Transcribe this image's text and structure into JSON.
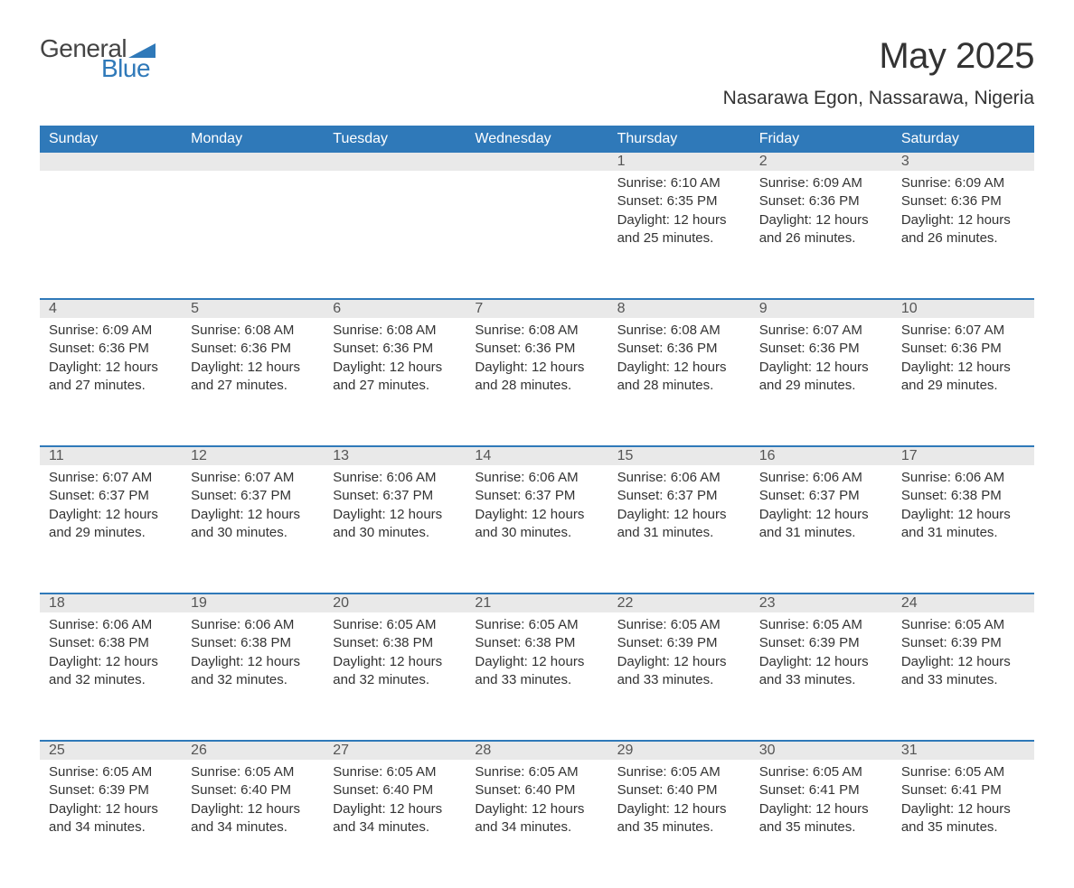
{
  "logo": {
    "word1": "General",
    "word2": "Blue",
    "tri_color": "#2f79b9"
  },
  "title": "May 2025",
  "subtitle": "Nasarawa Egon, Nassarawa, Nigeria",
  "colors": {
    "header_bg": "#2f79b9",
    "header_text": "#ffffff",
    "daynum_bg": "#e9e9e9",
    "daynum_text": "#555555",
    "body_text": "#333333",
    "rule": "#2f79b9",
    "page_bg": "#ffffff"
  },
  "typography": {
    "title_fontsize": 40,
    "subtitle_fontsize": 21,
    "weekday_fontsize": 16,
    "daynum_fontsize": 16,
    "body_fontsize": 15,
    "font_family": "Segoe UI"
  },
  "layout": {
    "columns": 7,
    "rows": 5,
    "leading_blanks": 4
  },
  "weekdays": [
    "Sunday",
    "Monday",
    "Tuesday",
    "Wednesday",
    "Thursday",
    "Friday",
    "Saturday"
  ],
  "weeks": [
    [
      null,
      null,
      null,
      null,
      {
        "n": "1",
        "sr": "Sunrise: 6:10 AM",
        "ss": "Sunset: 6:35 PM",
        "d1": "Daylight: 12 hours",
        "d2": "and 25 minutes."
      },
      {
        "n": "2",
        "sr": "Sunrise: 6:09 AM",
        "ss": "Sunset: 6:36 PM",
        "d1": "Daylight: 12 hours",
        "d2": "and 26 minutes."
      },
      {
        "n": "3",
        "sr": "Sunrise: 6:09 AM",
        "ss": "Sunset: 6:36 PM",
        "d1": "Daylight: 12 hours",
        "d2": "and 26 minutes."
      }
    ],
    [
      {
        "n": "4",
        "sr": "Sunrise: 6:09 AM",
        "ss": "Sunset: 6:36 PM",
        "d1": "Daylight: 12 hours",
        "d2": "and 27 minutes."
      },
      {
        "n": "5",
        "sr": "Sunrise: 6:08 AM",
        "ss": "Sunset: 6:36 PM",
        "d1": "Daylight: 12 hours",
        "d2": "and 27 minutes."
      },
      {
        "n": "6",
        "sr": "Sunrise: 6:08 AM",
        "ss": "Sunset: 6:36 PM",
        "d1": "Daylight: 12 hours",
        "d2": "and 27 minutes."
      },
      {
        "n": "7",
        "sr": "Sunrise: 6:08 AM",
        "ss": "Sunset: 6:36 PM",
        "d1": "Daylight: 12 hours",
        "d2": "and 28 minutes."
      },
      {
        "n": "8",
        "sr": "Sunrise: 6:08 AM",
        "ss": "Sunset: 6:36 PM",
        "d1": "Daylight: 12 hours",
        "d2": "and 28 minutes."
      },
      {
        "n": "9",
        "sr": "Sunrise: 6:07 AM",
        "ss": "Sunset: 6:36 PM",
        "d1": "Daylight: 12 hours",
        "d2": "and 29 minutes."
      },
      {
        "n": "10",
        "sr": "Sunrise: 6:07 AM",
        "ss": "Sunset: 6:36 PM",
        "d1": "Daylight: 12 hours",
        "d2": "and 29 minutes."
      }
    ],
    [
      {
        "n": "11",
        "sr": "Sunrise: 6:07 AM",
        "ss": "Sunset: 6:37 PM",
        "d1": "Daylight: 12 hours",
        "d2": "and 29 minutes."
      },
      {
        "n": "12",
        "sr": "Sunrise: 6:07 AM",
        "ss": "Sunset: 6:37 PM",
        "d1": "Daylight: 12 hours",
        "d2": "and 30 minutes."
      },
      {
        "n": "13",
        "sr": "Sunrise: 6:06 AM",
        "ss": "Sunset: 6:37 PM",
        "d1": "Daylight: 12 hours",
        "d2": "and 30 minutes."
      },
      {
        "n": "14",
        "sr": "Sunrise: 6:06 AM",
        "ss": "Sunset: 6:37 PM",
        "d1": "Daylight: 12 hours",
        "d2": "and 30 minutes."
      },
      {
        "n": "15",
        "sr": "Sunrise: 6:06 AM",
        "ss": "Sunset: 6:37 PM",
        "d1": "Daylight: 12 hours",
        "d2": "and 31 minutes."
      },
      {
        "n": "16",
        "sr": "Sunrise: 6:06 AM",
        "ss": "Sunset: 6:37 PM",
        "d1": "Daylight: 12 hours",
        "d2": "and 31 minutes."
      },
      {
        "n": "17",
        "sr": "Sunrise: 6:06 AM",
        "ss": "Sunset: 6:38 PM",
        "d1": "Daylight: 12 hours",
        "d2": "and 31 minutes."
      }
    ],
    [
      {
        "n": "18",
        "sr": "Sunrise: 6:06 AM",
        "ss": "Sunset: 6:38 PM",
        "d1": "Daylight: 12 hours",
        "d2": "and 32 minutes."
      },
      {
        "n": "19",
        "sr": "Sunrise: 6:06 AM",
        "ss": "Sunset: 6:38 PM",
        "d1": "Daylight: 12 hours",
        "d2": "and 32 minutes."
      },
      {
        "n": "20",
        "sr": "Sunrise: 6:05 AM",
        "ss": "Sunset: 6:38 PM",
        "d1": "Daylight: 12 hours",
        "d2": "and 32 minutes."
      },
      {
        "n": "21",
        "sr": "Sunrise: 6:05 AM",
        "ss": "Sunset: 6:38 PM",
        "d1": "Daylight: 12 hours",
        "d2": "and 33 minutes."
      },
      {
        "n": "22",
        "sr": "Sunrise: 6:05 AM",
        "ss": "Sunset: 6:39 PM",
        "d1": "Daylight: 12 hours",
        "d2": "and 33 minutes."
      },
      {
        "n": "23",
        "sr": "Sunrise: 6:05 AM",
        "ss": "Sunset: 6:39 PM",
        "d1": "Daylight: 12 hours",
        "d2": "and 33 minutes."
      },
      {
        "n": "24",
        "sr": "Sunrise: 6:05 AM",
        "ss": "Sunset: 6:39 PM",
        "d1": "Daylight: 12 hours",
        "d2": "and 33 minutes."
      }
    ],
    [
      {
        "n": "25",
        "sr": "Sunrise: 6:05 AM",
        "ss": "Sunset: 6:39 PM",
        "d1": "Daylight: 12 hours",
        "d2": "and 34 minutes."
      },
      {
        "n": "26",
        "sr": "Sunrise: 6:05 AM",
        "ss": "Sunset: 6:40 PM",
        "d1": "Daylight: 12 hours",
        "d2": "and 34 minutes."
      },
      {
        "n": "27",
        "sr": "Sunrise: 6:05 AM",
        "ss": "Sunset: 6:40 PM",
        "d1": "Daylight: 12 hours",
        "d2": "and 34 minutes."
      },
      {
        "n": "28",
        "sr": "Sunrise: 6:05 AM",
        "ss": "Sunset: 6:40 PM",
        "d1": "Daylight: 12 hours",
        "d2": "and 34 minutes."
      },
      {
        "n": "29",
        "sr": "Sunrise: 6:05 AM",
        "ss": "Sunset: 6:40 PM",
        "d1": "Daylight: 12 hours",
        "d2": "and 35 minutes."
      },
      {
        "n": "30",
        "sr": "Sunrise: 6:05 AM",
        "ss": "Sunset: 6:41 PM",
        "d1": "Daylight: 12 hours",
        "d2": "and 35 minutes."
      },
      {
        "n": "31",
        "sr": "Sunrise: 6:05 AM",
        "ss": "Sunset: 6:41 PM",
        "d1": "Daylight: 12 hours",
        "d2": "and 35 minutes."
      }
    ]
  ]
}
